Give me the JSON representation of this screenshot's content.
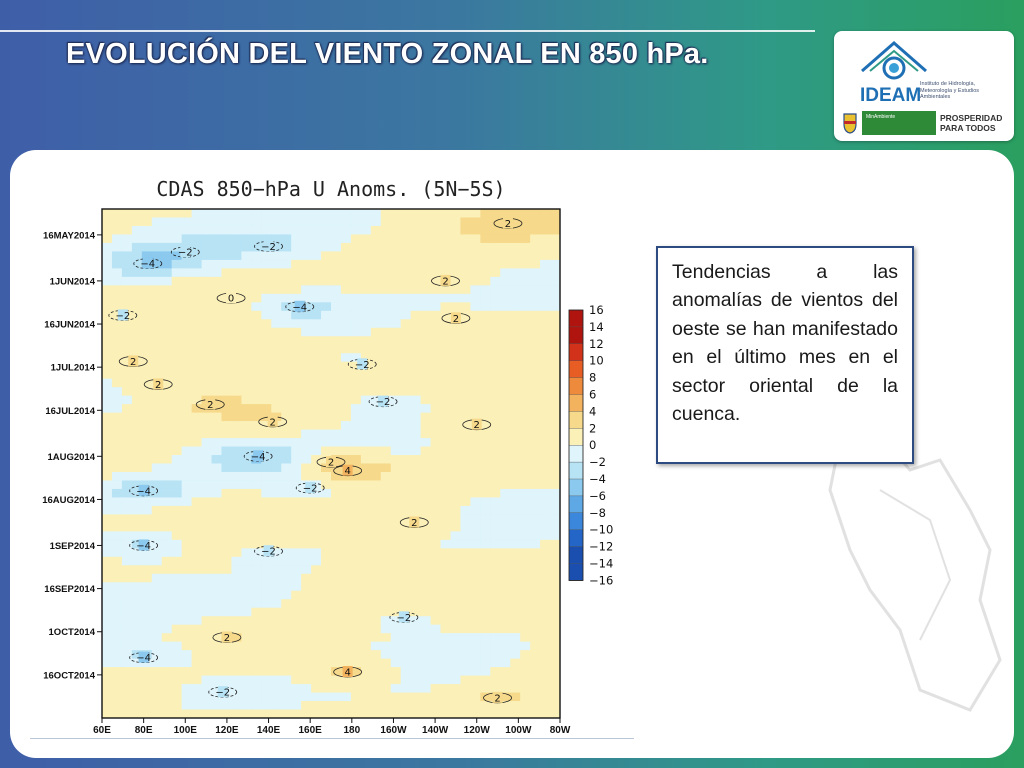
{
  "slide": {
    "title": "EVOLUCIÓN DEL VIENTO ZONAL EN 850 hPa.",
    "description": "Tendencias a las anomalías de vientos del oeste se han manifestado en el último mes en el sector oriental de la cuenca."
  },
  "logo": {
    "name": "IDEAM",
    "institution": "Instituto de Hidrología, Meteorología y Estudios Ambientales",
    "ministry": "MinAmbiente",
    "prosperity_line1": "PROSPERIDAD",
    "prosperity_line2": "PARA TODOS"
  },
  "colors": {
    "title": "#ffffff",
    "frame": "#2d4b80",
    "palette_negative": [
      "#dff4fb",
      "#b7e3f5",
      "#8bc9ef",
      "#5fa8e6",
      "#3a87db",
      "#2465c8",
      "#1a4faf"
    ],
    "palette_positive": [
      "#fbf0b8",
      "#f6d98a",
      "#f2b25e",
      "#ee8a3c",
      "#e85d24",
      "#d2311a",
      "#b0140f"
    ]
  },
  "chart_data": {
    "type": "heatmap",
    "title": "CDAS 850−hPa U Anoms. (5N−5S)",
    "x_ticks": [
      "60E",
      "80E",
      "100E",
      "120E",
      "140E",
      "160E",
      "180",
      "160W",
      "140W",
      "120W",
      "100W",
      "80W"
    ],
    "y_ticks": [
      "16MAY2014",
      "1JUN2014",
      "16JUN2014",
      "1JUL2014",
      "16JUL2014",
      "1AUG2014",
      "16AUG2014",
      "1SEP2014",
      "16SEP2014",
      "1OCT2014",
      "16OCT2014"
    ],
    "colorbar_levels": [
      16,
      14,
      12,
      10,
      8,
      6,
      4,
      2,
      0,
      -2,
      -4,
      -6,
      -8,
      -10,
      -12,
      -14,
      -16
    ],
    "colorbar_labels": [
      "16",
      "14",
      "12",
      "10",
      "8",
      "6",
      "4",
      "2",
      "0",
      "−2",
      "−4",
      "−6",
      "−8",
      "−10",
      "−12",
      "−14",
      "−16"
    ],
    "features": [
      {
        "lon": 178,
        "date": "6AUG2014",
        "value": 4,
        "label": "4"
      },
      {
        "lon": 170,
        "date": "3AUG2014",
        "value": 2,
        "label": "2"
      },
      {
        "lon": 135,
        "date": "1AUG2014",
        "value": -4,
        "label": "−4"
      },
      {
        "lon": 82,
        "date": "26MAY2014",
        "value": -4,
        "label": "−4"
      },
      {
        "lon": 155,
        "date": "10JUN2014",
        "value": -4,
        "label": "−4"
      },
      {
        "lon": 80,
        "date": "13AUG2014",
        "value": -4,
        "label": "−4"
      },
      {
        "lon": 80,
        "date": "1SEP2014",
        "value": -4,
        "label": "−4"
      },
      {
        "lon": 80,
        "date": "10OCT2014",
        "value": -4,
        "label": "−4"
      },
      {
        "lon": 178,
        "date": "15OCT2014",
        "value": 4,
        "label": "4"
      },
      {
        "lon": 70,
        "date": "13JUN2014",
        "value": -2,
        "label": "−2"
      },
      {
        "lon": 75,
        "date": "29JUN2014",
        "value": 2,
        "label": "2"
      },
      {
        "lon": 87,
        "date": "7JUL2014",
        "value": 2,
        "label": "2"
      },
      {
        "lon": 112,
        "date": "14JUL2014",
        "value": 2,
        "label": "2"
      },
      {
        "lon": 142,
        "date": "20JUL2014",
        "value": 2,
        "label": "2"
      },
      {
        "lon": 185,
        "date": "30JUN2014",
        "value": -2,
        "label": "−2"
      },
      {
        "lon": 100,
        "date": "22MAY2014",
        "value": -2,
        "label": "−2"
      },
      {
        "lon": 140,
        "date": "20MAY2014",
        "value": -2,
        "label": "−2"
      },
      {
        "lon": 122,
        "date": "7JUN2014",
        "value": 0,
        "label": "0"
      },
      {
        "lon": 230,
        "date": "14JUN2014",
        "value": 2,
        "label": "2"
      },
      {
        "lon": 225,
        "date": "1JUN2014",
        "value": 2,
        "label": "2"
      },
      {
        "lon": 255,
        "date": "12MAY2014",
        "value": 2,
        "label": "2"
      },
      {
        "lon": 195,
        "date": "13JUL2014",
        "value": -2,
        "label": "−2"
      },
      {
        "lon": 240,
        "date": "21JUL2014",
        "value": 2,
        "label": "2"
      },
      {
        "lon": 140,
        "date": "3SEP2014",
        "value": -2,
        "label": "−2"
      },
      {
        "lon": 160,
        "date": "12AUG2014",
        "value": -2,
        "label": "−2"
      },
      {
        "lon": 210,
        "date": "24AUG2014",
        "value": 2,
        "label": "2"
      },
      {
        "lon": 205,
        "date": "26SEP2014",
        "value": -2,
        "label": "−2"
      },
      {
        "lon": 250,
        "date": "24OCT2014",
        "value": 2,
        "label": "2"
      },
      {
        "lon": 120,
        "date": "3OCT2014",
        "value": 2,
        "label": "2"
      },
      {
        "lon": 118,
        "date": "22OCT2014",
        "value": -2,
        "label": "−2"
      }
    ],
    "xlabel": "",
    "ylabel": "",
    "x_range": [
      "60E",
      "80W"
    ],
    "y_range": [
      "7MAY2014",
      "31OCT2014"
    ],
    "colorbar_position": "right"
  }
}
